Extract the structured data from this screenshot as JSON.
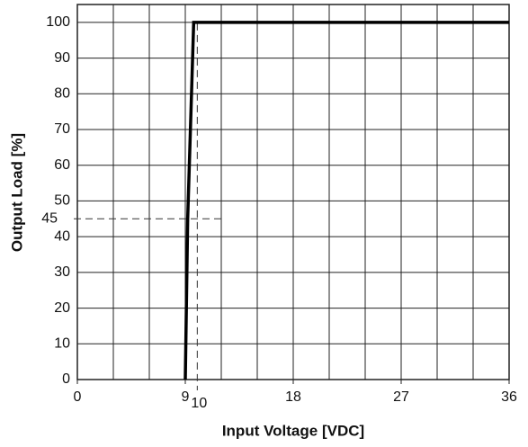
{
  "chart_data": {
    "type": "line",
    "x_label": "Input Voltage [VDC]",
    "y_label": "Output Load [%]",
    "series": [
      {
        "color": "#000000",
        "x": [
          9,
          9.2,
          9.7,
          36
        ],
        "values": [
          0,
          45,
          100,
          100
        ]
      }
    ],
    "xlim": [
      0,
      36
    ],
    "xticks": [
      0,
      9,
      18,
      27,
      36
    ],
    "x_grid": [
      3,
      6,
      9,
      12,
      15,
      18,
      21,
      24,
      27,
      30,
      33
    ],
    "ylim": [
      0,
      105
    ],
    "yticks": [
      0,
      10,
      20,
      30,
      40,
      50,
      60,
      70,
      80,
      90,
      100
    ],
    "grid": true,
    "reference_lines": [
      {
        "axis": "y",
        "value": 45
      },
      {
        "axis": "x",
        "value": 10
      }
    ]
  }
}
